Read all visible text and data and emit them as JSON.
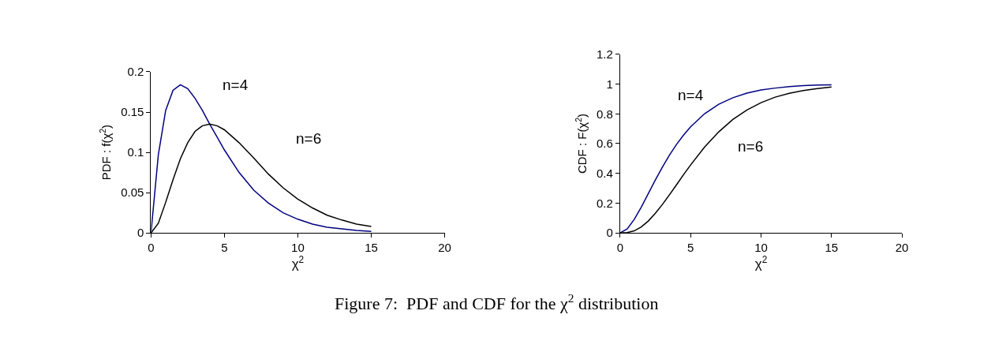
{
  "chart_data": [
    {
      "type": "line",
      "ylabel": "PDF : f(χ$^{2}$)",
      "xlabel": "χ$^{2}$",
      "x": [
        0,
        0.5,
        1,
        1.5,
        2,
        2.5,
        3,
        3.5,
        4,
        4.5,
        5,
        6,
        7,
        8,
        9,
        10,
        11,
        12,
        13,
        14,
        15
      ],
      "series": [
        {
          "name": "n=4",
          "color": "#000080",
          "values": [
            0,
            0.097,
            0.152,
            0.177,
            0.184,
            0.179,
            0.167,
            0.152,
            0.135,
            0.119,
            0.103,
            0.075,
            0.053,
            0.037,
            0.025,
            0.017,
            0.011,
            0.007,
            0.005,
            0.003,
            0.002
          ]
        },
        {
          "name": "n=6",
          "color": "#000000",
          "values": [
            0,
            0.012,
            0.038,
            0.066,
            0.092,
            0.112,
            0.126,
            0.133,
            0.135,
            0.133,
            0.128,
            0.112,
            0.093,
            0.073,
            0.056,
            0.042,
            0.031,
            0.022,
            0.016,
            0.011,
            0.008
          ]
        }
      ],
      "xlim": [
        0,
        20
      ],
      "xticks": [
        0,
        5,
        10,
        15,
        20
      ],
      "ylim": [
        0,
        0.2
      ],
      "yticks": [
        0,
        0.05,
        0.1,
        0.15,
        0.2
      ],
      "legend": false
    },
    {
      "type": "line",
      "ylabel": "CDF : F(χ$^{2}$)",
      "xlabel": "χ$^{2}$",
      "x": [
        0,
        0.5,
        1,
        1.5,
        2,
        2.5,
        3,
        3.5,
        4,
        4.5,
        5,
        6,
        7,
        8,
        9,
        10,
        11,
        12,
        13,
        14,
        15
      ],
      "series": [
        {
          "name": "n=4",
          "color": "#000080",
          "values": [
            0,
            0.026,
            0.09,
            0.173,
            0.264,
            0.355,
            0.442,
            0.522,
            0.594,
            0.657,
            0.713,
            0.801,
            0.864,
            0.908,
            0.939,
            0.96,
            0.973,
            0.983,
            0.989,
            0.993,
            0.995
          ]
        },
        {
          "name": "n=6",
          "color": "#000000",
          "values": [
            0,
            0.002,
            0.014,
            0.04,
            0.08,
            0.132,
            0.191,
            0.256,
            0.323,
            0.391,
            0.456,
            0.577,
            0.679,
            0.762,
            0.826,
            0.875,
            0.912,
            0.938,
            0.957,
            0.97,
            0.98
          ]
        }
      ],
      "annotations": [
        "Figure 7:  PDF and CDF for the χ$^{2}$ distribution"
      ],
      "xlim": [
        0,
        20
      ],
      "xticks": [
        0,
        5,
        10,
        15,
        20
      ],
      "ylim": [
        0,
        1.2
      ],
      "yticks": [
        0,
        0.2,
        0.4,
        0.6,
        0.8,
        1,
        1.2
      ],
      "legend": false
    }
  ]
}
